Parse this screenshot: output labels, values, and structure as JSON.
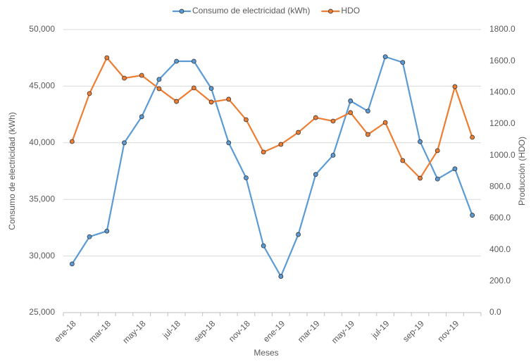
{
  "chart_data": {
    "type": "line",
    "x_label": "Meses",
    "y_label": "Consumo de electricidad  (kWh)",
    "y2_label": "Producción  (HDO)",
    "categories": [
      "ene-18",
      null,
      "mar-18",
      null,
      "may-18",
      null,
      "jul-18",
      null,
      "sep-18",
      null,
      "nov-18",
      null,
      "ene-19",
      null,
      "mar-19",
      null,
      "may-19",
      null,
      "jul-19",
      null,
      "sep-19",
      null,
      "nov-19",
      null
    ],
    "series": [
      {
        "name": "Consumo de electricidad (kWh)",
        "color": "#5b9bd5",
        "axis": "y",
        "values": [
          29300,
          31700,
          32200,
          40000,
          42300,
          45600,
          47200,
          47200,
          44800,
          40000,
          36900,
          30900,
          28200,
          31900,
          37200,
          38900,
          43700,
          42800,
          47600,
          47100,
          40100,
          36800,
          37700,
          33600
        ]
      },
      {
        "name": "HDO",
        "color": "#ed7d31",
        "axis": "y2",
        "values": [
          1088,
          1393,
          1621,
          1491,
          1509,
          1424,
          1343,
          1429,
          1339,
          1357,
          1227,
          1021,
          1070,
          1146,
          1240,
          1218,
          1272,
          1133,
          1209,
          967,
          855,
          1030,
          1437,
          1115
        ]
      }
    ],
    "ylim": [
      25000,
      50000
    ],
    "yticks": [
      {
        "value": 25000,
        "label": "25,000"
      },
      {
        "value": 30000,
        "label": "30,000"
      },
      {
        "value": 35000,
        "label": "35,000"
      },
      {
        "value": 40000,
        "label": "40,000"
      },
      {
        "value": 45000,
        "label": "45,000"
      },
      {
        "value": 50000,
        "label": "50,000"
      }
    ],
    "y2lim": [
      0,
      1800
    ],
    "y2ticks": [
      {
        "value": 0,
        "label": "0.0"
      },
      {
        "value": 200,
        "label": "200.0"
      },
      {
        "value": 400,
        "label": "400.0"
      },
      {
        "value": 600,
        "label": "600.0"
      },
      {
        "value": 800,
        "label": "800.0"
      },
      {
        "value": 1000,
        "label": "1000.0"
      },
      {
        "value": 1200,
        "label": "1200.0"
      },
      {
        "value": 1400,
        "label": "1400.0"
      },
      {
        "value": 1600,
        "label": "1600.0"
      },
      {
        "value": 1800,
        "label": "1800.0"
      }
    ],
    "grid": true,
    "legend": "top"
  }
}
